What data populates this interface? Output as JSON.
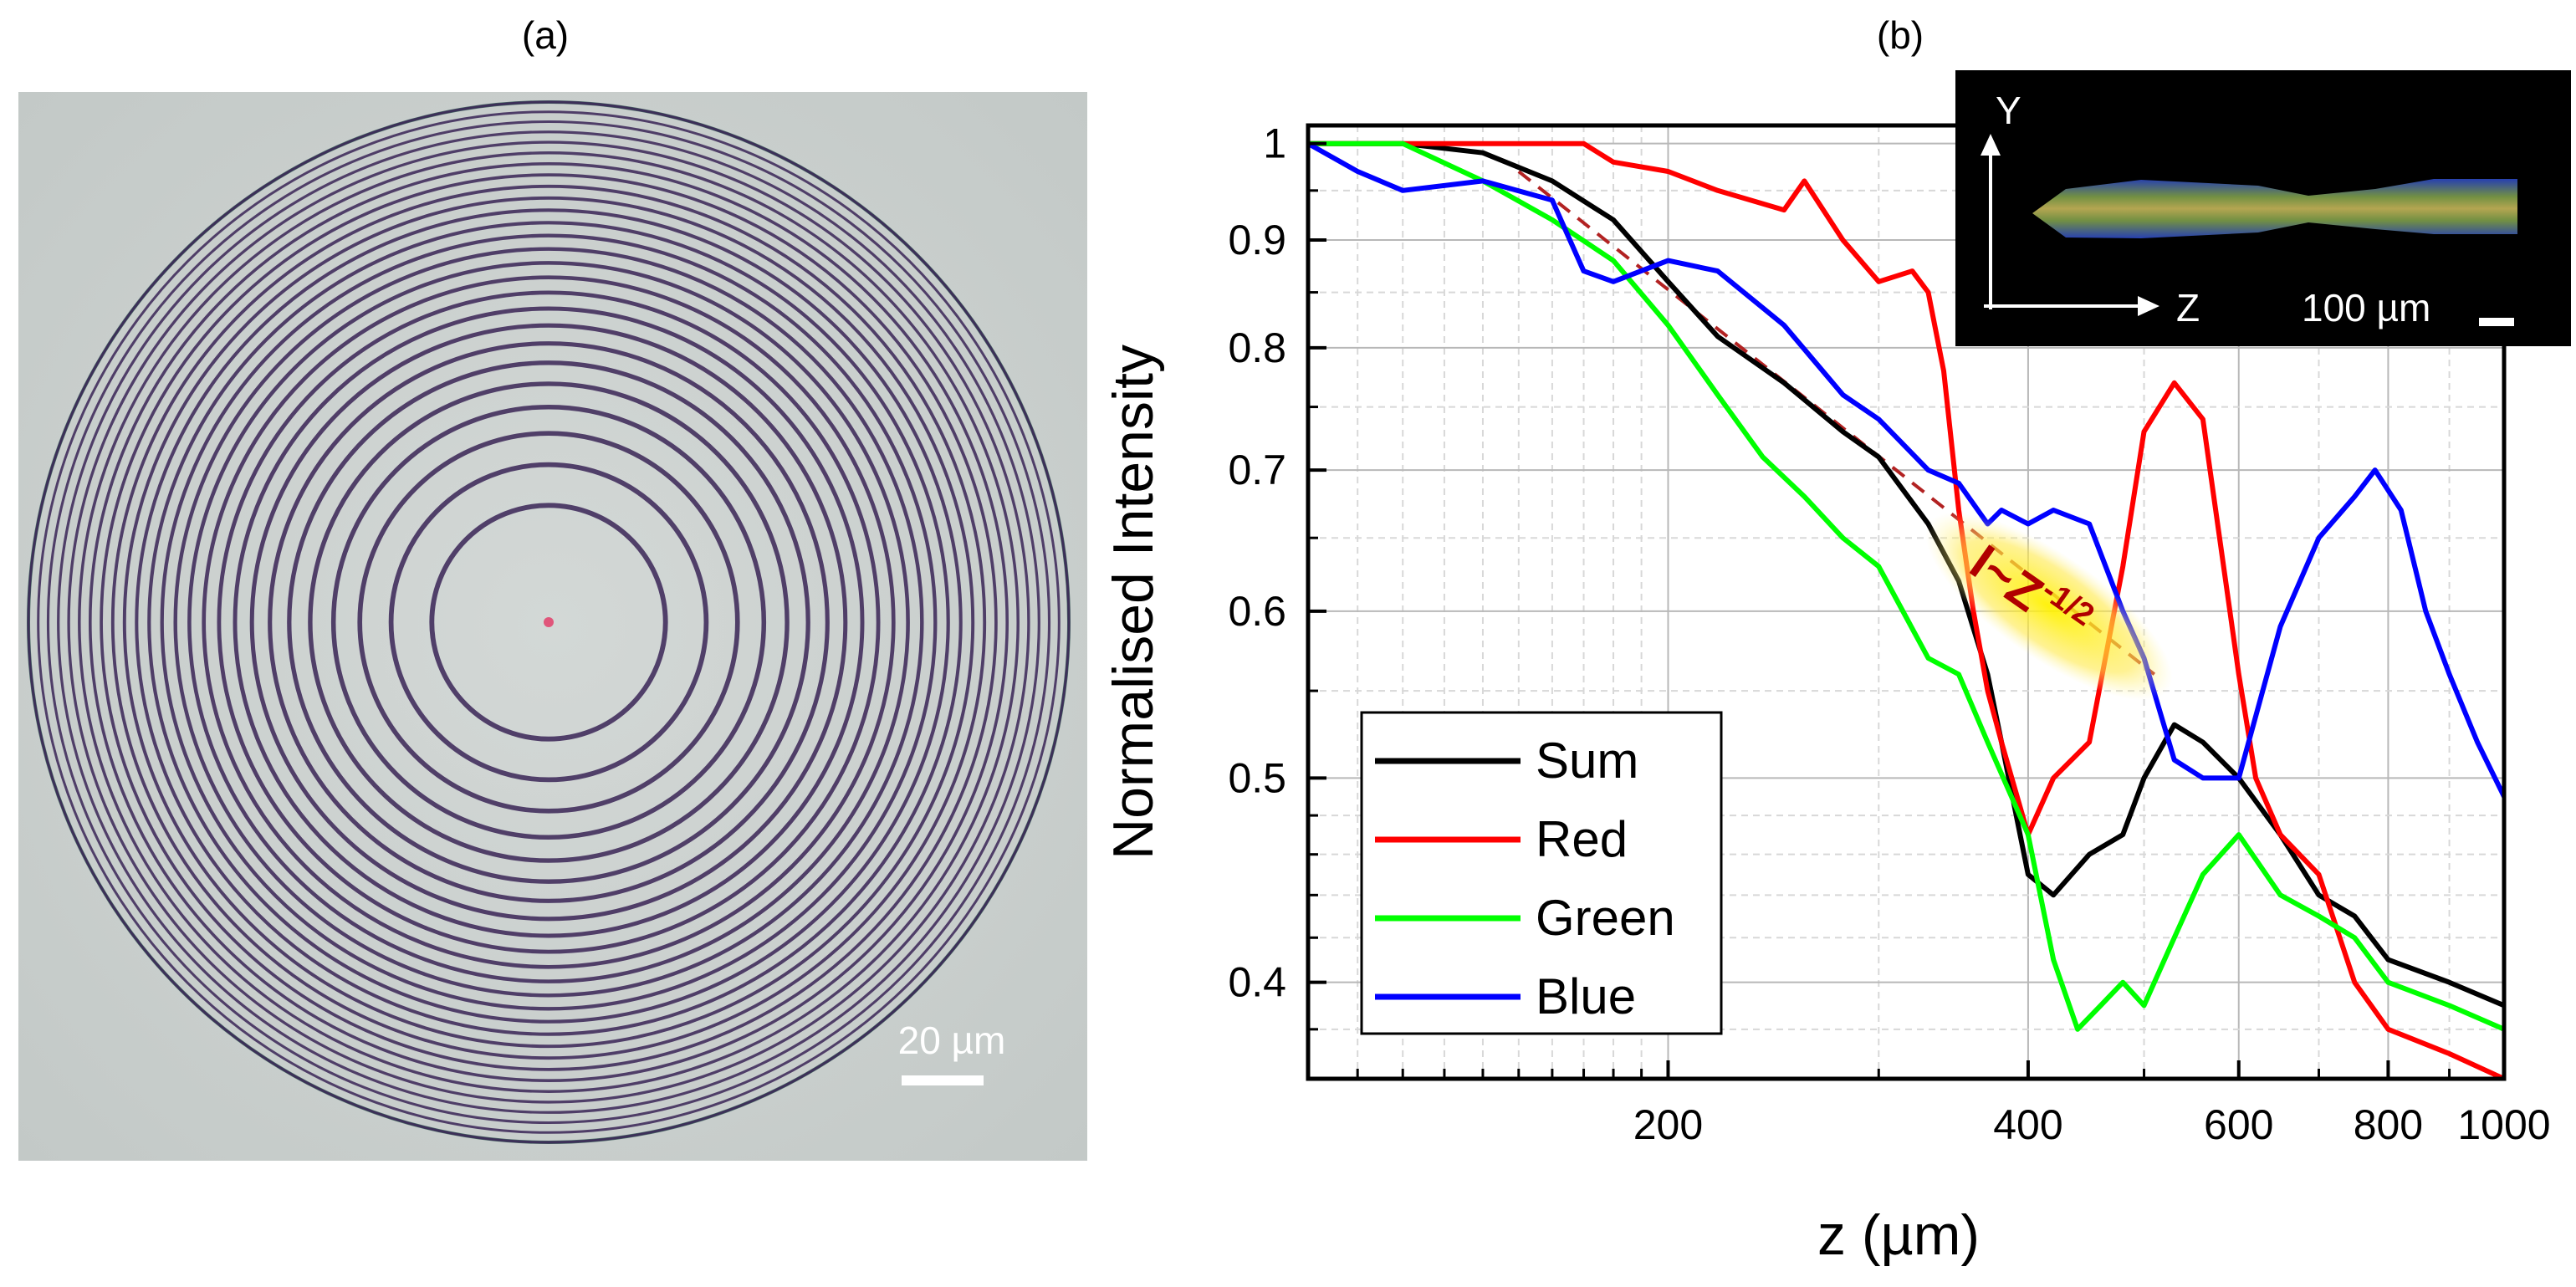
{
  "panels": {
    "a_label": "(a)",
    "b_label": "(b)"
  },
  "micrograph": {
    "scale_bar_label": "20 µm",
    "colors": {
      "background": "#c9cfcd",
      "ring": "#3a2456",
      "center_dot": "#e0557a"
    }
  },
  "inset": {
    "axis_y_label": "Y",
    "axis_z_label": "Z",
    "scale_bar_label": "100 µm",
    "colors": {
      "background": "#000000",
      "beam_core": "#b8b85a",
      "beam_edge": "#3a56c8"
    }
  },
  "annotation": {
    "base": "I~Z",
    "exponent": "-1/2"
  },
  "chart_data": {
    "type": "line",
    "xlabel": "z (µm)",
    "ylabel": "Normalised Intensity",
    "x_scale": "log",
    "y_scale": "log",
    "xlim": [
      100,
      1000
    ],
    "ylim": [
      0.36,
      1.02
    ],
    "x_ticks": [
      200,
      400,
      600,
      800,
      1000
    ],
    "x_tick_labels": [
      "200",
      "400",
      "600",
      "800",
      "1000"
    ],
    "y_ticks": [
      0.4,
      0.5,
      0.6,
      0.7,
      0.8,
      0.9,
      1.0
    ],
    "y_tick_labels": [
      "0.4",
      "0.5",
      "0.6",
      "0.7",
      "0.8",
      "0.9",
      "1"
    ],
    "grid": true,
    "legend_position": "bottom-left",
    "series": [
      {
        "name": "Sum",
        "color": "#000000",
        "x": [
          100,
          120,
          140,
          160,
          180,
          200,
          220,
          250,
          280,
          300,
          330,
          350,
          370,
          380,
          400,
          420,
          450,
          480,
          500,
          530,
          560,
          600,
          650,
          700,
          750,
          800,
          900,
          1000
        ],
        "y": [
          1.0,
          1.0,
          0.99,
          0.96,
          0.92,
          0.86,
          0.81,
          0.77,
          0.73,
          0.71,
          0.66,
          0.62,
          0.56,
          0.52,
          0.45,
          0.44,
          0.46,
          0.47,
          0.5,
          0.53,
          0.52,
          0.5,
          0.47,
          0.44,
          0.43,
          0.41,
          0.4,
          0.39
        ]
      },
      {
        "name": "Red",
        "color": "#ff0000",
        "x": [
          100,
          120,
          140,
          160,
          170,
          180,
          200,
          220,
          250,
          260,
          280,
          300,
          320,
          330,
          340,
          350,
          360,
          370,
          380,
          400,
          420,
          450,
          480,
          500,
          530,
          560,
          600,
          620,
          650,
          700,
          750,
          800,
          900,
          1000
        ],
        "y": [
          1.0,
          1.0,
          1.0,
          1.0,
          1.0,
          0.98,
          0.97,
          0.95,
          0.93,
          0.96,
          0.9,
          0.86,
          0.87,
          0.85,
          0.78,
          0.67,
          0.6,
          0.55,
          0.52,
          0.47,
          0.5,
          0.52,
          0.63,
          0.73,
          0.77,
          0.74,
          0.56,
          0.5,
          0.47,
          0.45,
          0.4,
          0.38,
          0.37,
          0.36
        ]
      },
      {
        "name": "Green",
        "color": "#00ff00",
        "x": [
          100,
          120,
          140,
          160,
          180,
          200,
          220,
          240,
          260,
          280,
          300,
          330,
          350,
          370,
          400,
          420,
          440,
          460,
          480,
          500,
          530,
          560,
          600,
          650,
          700,
          750,
          800,
          900,
          1000
        ],
        "y": [
          1.0,
          1.0,
          0.96,
          0.92,
          0.88,
          0.82,
          0.76,
          0.71,
          0.68,
          0.65,
          0.63,
          0.57,
          0.56,
          0.52,
          0.47,
          0.41,
          0.38,
          0.39,
          0.4,
          0.39,
          0.42,
          0.45,
          0.47,
          0.44,
          0.43,
          0.42,
          0.4,
          0.39,
          0.38
        ]
      },
      {
        "name": "Blue",
        "color": "#0000ff",
        "x": [
          100,
          110,
          120,
          140,
          160,
          170,
          180,
          200,
          220,
          250,
          280,
          300,
          330,
          350,
          370,
          380,
          400,
          420,
          450,
          480,
          500,
          530,
          560,
          600,
          650,
          700,
          750,
          780,
          820,
          860,
          900,
          950,
          1000
        ],
        "y": [
          1.0,
          0.97,
          0.95,
          0.96,
          0.94,
          0.87,
          0.86,
          0.88,
          0.87,
          0.82,
          0.76,
          0.74,
          0.7,
          0.69,
          0.66,
          0.67,
          0.66,
          0.67,
          0.66,
          0.6,
          0.57,
          0.51,
          0.5,
          0.5,
          0.59,
          0.65,
          0.68,
          0.7,
          0.67,
          0.6,
          0.56,
          0.52,
          0.49
        ]
      }
    ],
    "fit_line": {
      "x": [
        150,
        510
      ],
      "y": [
        0.97,
        0.56
      ],
      "color": "#b22222",
      "style": "dashed"
    }
  }
}
